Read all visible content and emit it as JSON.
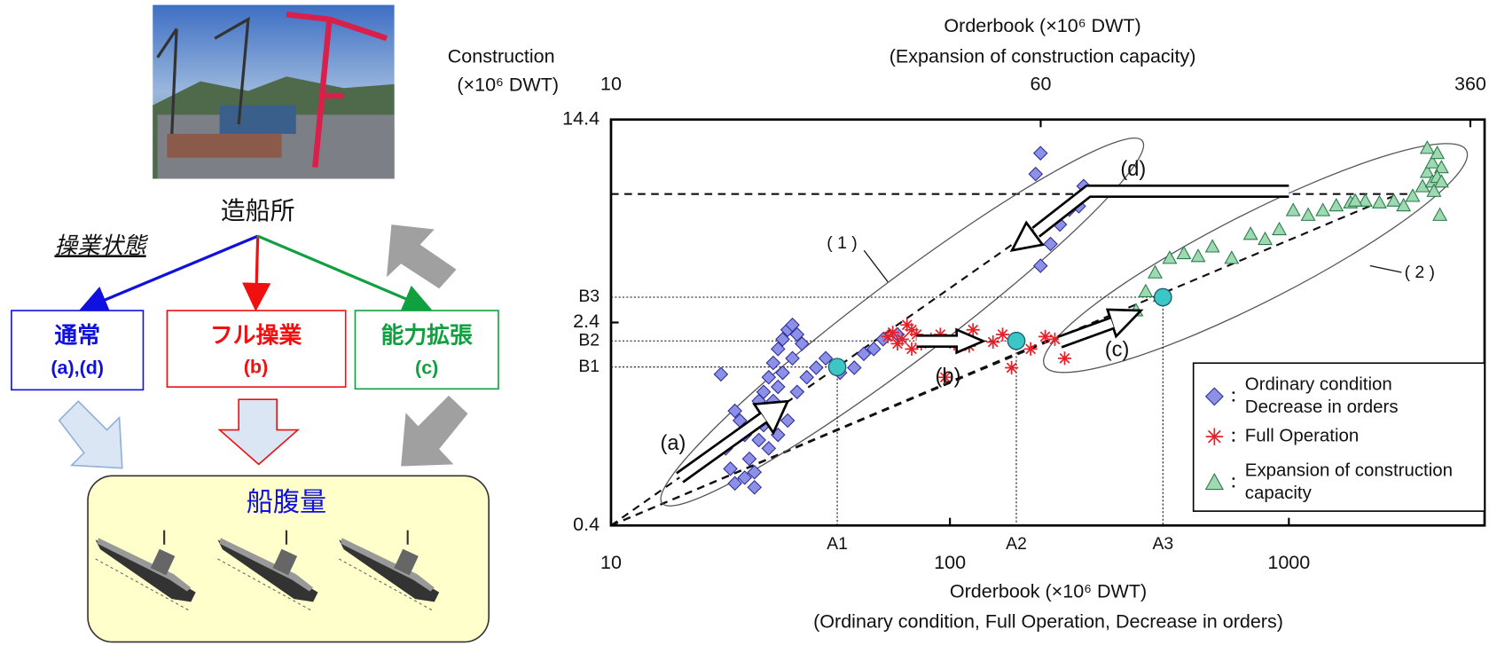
{
  "diagram": {
    "shipyard": "造船所",
    "operation_state": "操業状態",
    "boxes": [
      {
        "title": "通常",
        "sub": "(a),(d)"
      },
      {
        "title": "フル操業",
        "sub": "(b)"
      },
      {
        "title": "能力拡張",
        "sub": "(c)"
      }
    ],
    "fleet": "船腹量"
  },
  "chart_data": {
    "type": "scatter",
    "y_label": [
      "Construction",
      "(×10⁶  DWT)"
    ],
    "x_label": [
      "Orderbook (×10⁶  DWT)",
      "(Ordinary condition, Full Operation, Decrease in orders)"
    ],
    "x2_label": [
      "Orderbook (×10⁶  DWT)",
      "(Expansion of construction capacity)"
    ],
    "log_x": true,
    "log_y": true,
    "xlim": [
      10,
      3780
    ],
    "xticks": [
      10,
      100,
      1000
    ],
    "x2lim": [
      10,
      382
    ],
    "x2ticks": [
      10,
      60,
      360
    ],
    "ylim": [
      0.4,
      14.4
    ],
    "yticks": [
      0.4,
      2.4,
      14.4
    ],
    "legend": "lower right",
    "series": [
      {
        "name": "Ordinary condition Decrease in orders",
        "marker": "diamond",
        "color": "#8c90e6",
        "edge": "#2e2e9a",
        "x": [
          21.1,
          23.2,
          24.0,
          21.8,
          22.5,
          26.5,
          25.6,
          24.8,
          27.3,
          28.2,
          29.2,
          30.1,
          31.1,
          32.1,
          33.2,
          34.3,
          35.4,
          36.6,
          34.3,
          32.1,
          31.1,
          30.1,
          28.2,
          27.3,
          29.2,
          31.1,
          33.2,
          35.4,
          37.8,
          40.3,
          43.0,
          47.4,
          52.2,
          55.7,
          59.6,
          63.5,
          70.0,
          26.5,
          24.8,
          23.2,
          185,
          179,
          225,
          240,
          211,
          185,
          248,
          198
        ],
        "values": [
          1.52,
          1.1,
          1.01,
          0.79,
          0.66,
          0.64,
          0.72,
          0.89,
          1.2,
          1.3,
          1.48,
          1.68,
          1.9,
          2.07,
          2.25,
          2.35,
          2.16,
          1.99,
          1.75,
          1.54,
          1.36,
          1.2,
          0.97,
          0.85,
          0.79,
          0.89,
          1.01,
          1.3,
          1.48,
          1.61,
          1.75,
          1.54,
          1.61,
          1.82,
          1.9,
          2.07,
          2.16,
          0.56,
          0.61,
          0.58,
          10.7,
          8.9,
          6.5,
          6.7,
          5.7,
          3.96,
          8.0,
          4.8
        ]
      },
      {
        "name": "Full Operation",
        "marker": "asterisk",
        "color": "#e8202a",
        "edge": "#e8202a",
        "x": [
          67.8,
          72.3,
          74.7,
          77.1,
          79.7,
          82.3,
          77.1,
          70.0,
          65.6,
          96.8,
          117,
          134,
          152,
          173,
          191,
          204,
          218,
          103,
          87.9,
          93.7,
          114,
          143
        ],
        "values": [
          2.2,
          2.07,
          2.35,
          2.25,
          2.16,
          1.99,
          1.9,
          1.99,
          2.12,
          1.48,
          2.25,
          2.02,
          1.61,
          1.9,
          2.12,
          2.07,
          1.75,
          1.99,
          2.07,
          2.16,
          1.95,
          2.16
        ]
      },
      {
        "name": "Expansion of construction capacity",
        "marker": "triangle",
        "color": "#9fd9b1",
        "edge": "#2a7a4a",
        "x": [
          354,
          378,
          403,
          445,
          490,
          540,
          595,
          678,
          771,
          851,
          937,
          1030,
          1140,
          1260,
          1380,
          1520,
          1680,
          1850,
          2040,
          2180,
          2320,
          2480,
          2560,
          2650,
          2740,
          2820,
          2650,
          2740,
          2560,
          2820,
          2680,
          2790,
          1570,
          417
        ],
        "values": [
          2.67,
          3.16,
          3.73,
          4.24,
          4.42,
          4.31,
          4.69,
          4.24,
          5.24,
          5.01,
          5.46,
          6.46,
          6.2,
          6.46,
          6.74,
          6.92,
          7.03,
          6.92,
          7.03,
          6.74,
          7.33,
          7.98,
          9.06,
          9.85,
          10.7,
          9.44,
          8.32,
          8.67,
          11.2,
          8.32,
          7.66,
          6.2,
          7.03,
          3.03
        ]
      }
    ],
    "markers": [
      {
        "label_x": "A1",
        "label_y": "B1",
        "x": 46.5,
        "y": 1.62
      },
      {
        "label_x": "A2",
        "label_y": "B2",
        "x": 157,
        "y": 2.04
      },
      {
        "label_x": "A3",
        "label_y": "B3",
        "x": 425,
        "y": 3.0
      }
    ],
    "marker_color": "#3cc6c6",
    "annotations": [
      "(a)",
      "(b)",
      "(c)",
      "(d)",
      "( 1 )",
      "( 2 )"
    ]
  }
}
